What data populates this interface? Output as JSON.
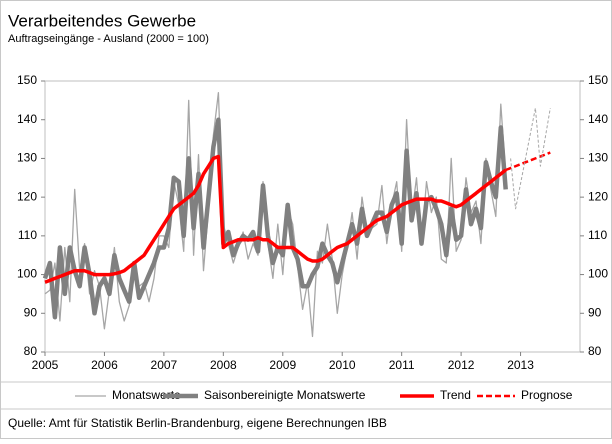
{
  "chart_data": {
    "type": "line",
    "title": "Verarbeitendes Gewerbe",
    "subtitle": "Auftragseingänge  - Ausland (2000 = 100)",
    "source": "Quelle: Amt für Statistik Berlin-Brandenburg,  eigene Berechnungen IBB",
    "xlim": [
      2005,
      2014
    ],
    "xticks": [
      2005,
      2006,
      2007,
      2008,
      2009,
      2010,
      2011,
      2012,
      2013
    ],
    "ylim": [
      80,
      150
    ],
    "yticks": [
      80,
      90,
      100,
      110,
      120,
      130,
      140,
      150
    ],
    "grid": false,
    "legend": "bottom",
    "x": [
      2005,
      2005.083,
      2005.167,
      2005.25,
      2005.333,
      2005.417,
      2005.5,
      2005.583,
      2005.667,
      2005.75,
      2005.833,
      2005.917,
      2006,
      2006.083,
      2006.167,
      2006.25,
      2006.333,
      2006.417,
      2006.5,
      2006.583,
      2006.667,
      2006.75,
      2006.833,
      2006.917,
      2007,
      2007.083,
      2007.167,
      2007.25,
      2007.333,
      2007.417,
      2007.5,
      2007.583,
      2007.667,
      2007.75,
      2007.833,
      2007.917,
      2008,
      2008.083,
      2008.167,
      2008.25,
      2008.333,
      2008.417,
      2008.5,
      2008.583,
      2008.667,
      2008.75,
      2008.833,
      2008.917,
      2009,
      2009.083,
      2009.167,
      2009.25,
      2009.333,
      2009.417,
      2009.5,
      2009.583,
      2009.667,
      2009.75,
      2009.833,
      2009.917,
      2010,
      2010.083,
      2010.167,
      2010.25,
      2010.333,
      2010.417,
      2010.5,
      2010.583,
      2010.667,
      2010.75,
      2010.833,
      2010.917,
      2011,
      2011.083,
      2011.167,
      2011.25,
      2011.333,
      2011.417,
      2011.5,
      2011.583,
      2011.667,
      2011.75,
      2011.833,
      2011.917,
      2012,
      2012.083,
      2012.167,
      2012.25,
      2012.333,
      2012.417,
      2012.5,
      2012.583,
      2012.667,
      2012.75
    ],
    "series": [
      {
        "name": "Monatswerte",
        "color": "#a6a6a6",
        "dash": false,
        "values": [
          95,
          96,
          103,
          88,
          107,
          93,
          122,
          101,
          108,
          95,
          101,
          97,
          86,
          96,
          107,
          93,
          88,
          92,
          100,
          97,
          98,
          93,
          99,
          110,
          110,
          107,
          124,
          118,
          106,
          145,
          105,
          131,
          101,
          117,
          136,
          147,
          113,
          108,
          103,
          107,
          111,
          104,
          108,
          105,
          124,
          108,
          99,
          113,
          100,
          117,
          113,
          102,
          91,
          98,
          84,
          106,
          103,
          113,
          104,
          90,
          100,
          107,
          116,
          104,
          120,
          111,
          112,
          113,
          123,
          108,
          118,
          124,
          106,
          140,
          115,
          125,
          108,
          124,
          116,
          120,
          104,
          103,
          130,
          106,
          109,
          125,
          116,
          119,
          108,
          130,
          122,
          115,
          144,
          126
        ]
      },
      {
        "name": "Saisonbereinigte Monatswerte",
        "color": "#808080",
        "dash": false,
        "values": [
          99,
          103,
          89,
          107,
          95,
          107,
          101,
          97,
          107,
          100,
          90,
          97,
          99,
          95,
          105,
          99,
          96,
          93,
          103,
          94,
          97,
          100,
          103,
          107,
          107,
          112,
          125,
          124,
          110,
          130,
          112,
          126,
          107,
          120,
          133,
          140,
          108,
          111,
          105,
          108,
          110,
          109,
          111,
          106,
          123,
          110,
          103,
          107,
          105,
          118,
          107,
          104,
          97,
          97,
          100,
          102,
          108,
          105,
          103,
          98,
          103,
          108,
          113,
          108,
          117,
          110,
          113,
          116,
          116,
          111,
          118,
          121,
          108,
          132,
          114,
          121,
          108,
          119,
          120,
          117,
          113,
          105,
          117,
          109,
          110,
          122,
          113,
          117,
          112,
          129,
          124,
          120,
          138,
          122
        ]
      },
      {
        "name": "Trend",
        "color": "#ff0000",
        "dash": false,
        "values": [
          98,
          98.5,
          99,
          99.5,
          100,
          100.5,
          101,
          101,
          101,
          100.5,
          100,
          100,
          100,
          100,
          100.2,
          100.5,
          101,
          102,
          103,
          104,
          105,
          107,
          109,
          111,
          113,
          115,
          117,
          118,
          119,
          120,
          121,
          123,
          126,
          128,
          130,
          130.5,
          107,
          108,
          108.5,
          109,
          109,
          109,
          109,
          109.5,
          109,
          109,
          108,
          107,
          107,
          107,
          107,
          106,
          105,
          104,
          103.5,
          103.5,
          104,
          105,
          106,
          107,
          107.5,
          108,
          109,
          110,
          111,
          112,
          113,
          114,
          114.5,
          115,
          116,
          117,
          118,
          118.5,
          119,
          119.5,
          119.5,
          119.5,
          119.5,
          119,
          119,
          118.5,
          118,
          117.5,
          118,
          119,
          120,
          121,
          122,
          123,
          124,
          125,
          126,
          127
        ]
      },
      {
        "name": "Prognose",
        "color": "#ff0000",
        "dash": true,
        "x": [
          2012.75,
          2013.5
        ],
        "values": [
          127,
          131.5
        ]
      },
      {
        "color": "#a6a6a6",
        "dash": true,
        "x": [
          2012.833,
          2012.917,
          2013.25,
          2013.333,
          2013.5
        ],
        "values": [
          130,
          117,
          143,
          128,
          143
        ]
      }
    ]
  }
}
